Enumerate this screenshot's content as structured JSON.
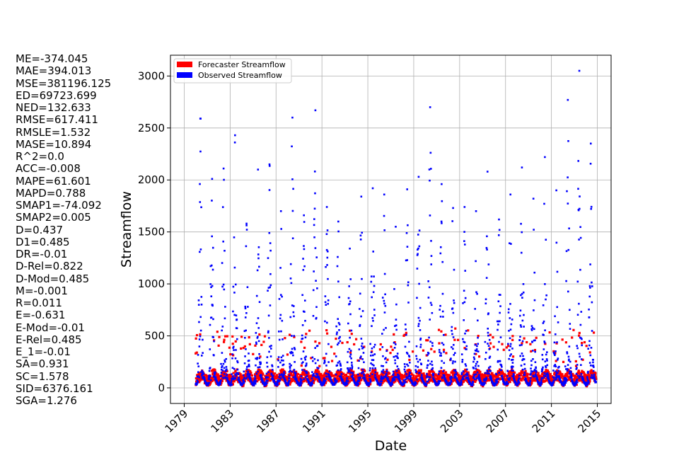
{
  "metrics": [
    "ME=-374.045",
    "MAE=394.013",
    "MSE=381196.125",
    "ED=69723.699",
    "NED=132.633",
    "RMSE=617.411",
    "RMSLE=1.532",
    "MASE=10.894",
    "R^2=0.0",
    "ACC=-0.008",
    "MAPE=61.601",
    "MAPD=0.788",
    "SMAP1=-74.092",
    "SMAP2=0.005",
    "D=0.437",
    "D1=0.485",
    "DR=-0.01",
    "D-Rel=0.822",
    "D-Mod=0.485",
    "M=-0.001",
    "R=0.011",
    "E=-0.631",
    "E-Mod=-0.01",
    "E-Rel=0.485",
    "E_1=-0.01",
    "SA=0.931",
    "SC=1.578",
    "SID=6376.161",
    "SGA=1.276"
  ],
  "chart_data": {
    "type": "scatter",
    "title": "",
    "xlabel": "Date",
    "ylabel": "Streamflow",
    "xlim": [
      1977.8,
      2016.2
    ],
    "ylim": [
      -150,
      3200
    ],
    "grid": true,
    "legend_position": "top-left",
    "x_ticks": [
      1979,
      1983,
      1987,
      1991,
      1995,
      1999,
      2003,
      2007,
      2011,
      2015
    ],
    "x_tick_labels": [
      "1979",
      "1983",
      "1987",
      "1991",
      "1995",
      "1999",
      "2003",
      "2007",
      "2011",
      "2015"
    ],
    "y_ticks": [
      0,
      500,
      1000,
      1500,
      2000,
      2500,
      3000
    ],
    "y_tick_labels": [
      "0",
      "500",
      "1000",
      "1500",
      "2000",
      "2500",
      "3000"
    ],
    "x_range_data": [
      1980.0,
      2014.9
    ],
    "series": [
      {
        "name": "Forecaster Streamflow",
        "color": "#ff0000",
        "typical_range": [
          20,
          250
        ],
        "peak_max": 720
      },
      {
        "name": "Observed Streamflow",
        "color": "#0000ff",
        "annual_peaks": [
          {
            "year": 1980,
            "peak": 2590
          },
          {
            "year": 1981,
            "peak": 2010
          },
          {
            "year": 1982,
            "peak": 2110
          },
          {
            "year": 1983,
            "peak": 2430
          },
          {
            "year": 1984,
            "peak": 1580
          },
          {
            "year": 1985,
            "peak": 2100
          },
          {
            "year": 1986,
            "peak": 2150
          },
          {
            "year": 1987,
            "peak": 1700
          },
          {
            "year": 1988,
            "peak": 2600
          },
          {
            "year": 1989,
            "peak": 1660
          },
          {
            "year": 1990,
            "peak": 2670
          },
          {
            "year": 1991,
            "peak": 1740
          },
          {
            "year": 1992,
            "peak": 1600
          },
          {
            "year": 1993,
            "peak": 1340
          },
          {
            "year": 1994,
            "peak": 1840
          },
          {
            "year": 1995,
            "peak": 1920
          },
          {
            "year": 1996,
            "peak": 1860
          },
          {
            "year": 1997,
            "peak": 1550
          },
          {
            "year": 1998,
            "peak": 1910
          },
          {
            "year": 1999,
            "peak": 2030
          },
          {
            "year": 2000,
            "peak": 2700
          },
          {
            "year": 2001,
            "peak": 1960
          },
          {
            "year": 2002,
            "peak": 1730
          },
          {
            "year": 2003,
            "peak": 1740
          },
          {
            "year": 2004,
            "peak": 1700
          },
          {
            "year": 2005,
            "peak": 2080
          },
          {
            "year": 2006,
            "peak": 1620
          },
          {
            "year": 2007,
            "peak": 1860
          },
          {
            "year": 2008,
            "peak": 2120
          },
          {
            "year": 2009,
            "peak": 1820
          },
          {
            "year": 2010,
            "peak": 2220
          },
          {
            "year": 2011,
            "peak": 1900
          },
          {
            "year": 2012,
            "peak": 2770
          },
          {
            "year": 2013,
            "peak": 3050
          },
          {
            "year": 2014,
            "peak": 2350
          }
        ]
      }
    ]
  }
}
